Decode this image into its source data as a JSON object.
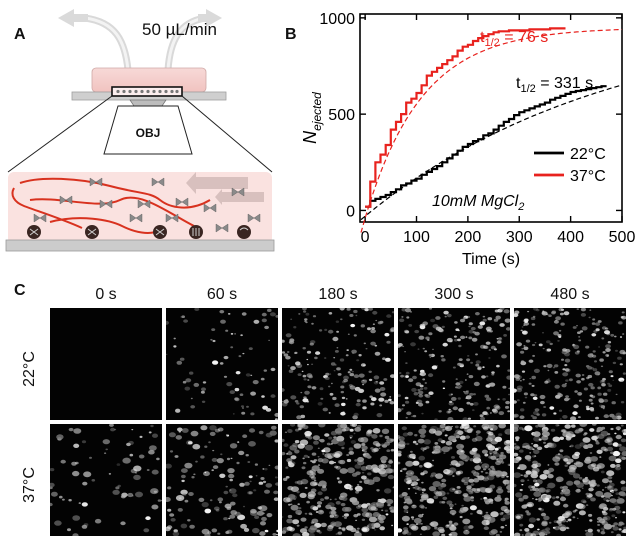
{
  "panels": {
    "a": "A",
    "b": "B",
    "c": "C"
  },
  "panel_a": {
    "flow_rate": "50 µL/min",
    "objective": "OBJ"
  },
  "chart_data": {
    "type": "line",
    "xlabel": "Time (s)",
    "ylabel": "N",
    "ylabel_subscript": "ejected",
    "xlim": [
      -10,
      500
    ],
    "ylim": [
      -60,
      1020
    ],
    "xticks": [
      0,
      100,
      200,
      300,
      400,
      500
    ],
    "yticks": [
      0,
      500,
      1000
    ],
    "grid": false,
    "legend_position": "right",
    "condition_label": "10mM MgCl",
    "condition_subscript": "2",
    "annotations": [
      {
        "series": "37°C",
        "text": "t",
        "subscript": "1/2",
        "suffix": " = 76 s"
      },
      {
        "series": "22°C",
        "text": "t",
        "subscript": "1/2",
        "suffix": " = 331 s"
      }
    ],
    "series": [
      {
        "name": "22°C",
        "color": "#000000",
        "style": "step",
        "x": [
          0,
          10,
          20,
          30,
          40,
          50,
          60,
          70,
          80,
          90,
          100,
          110,
          120,
          130,
          140,
          150,
          160,
          170,
          180,
          190,
          200,
          210,
          220,
          230,
          240,
          250,
          260,
          270,
          280,
          290,
          300,
          310,
          320,
          330,
          340,
          350,
          360,
          370,
          380,
          390,
          400,
          410,
          420,
          430,
          440,
          450,
          460,
          470
        ],
        "values": [
          20,
          50,
          60,
          70,
          80,
          95,
          110,
          130,
          140,
          155,
          165,
          185,
          200,
          215,
          230,
          250,
          270,
          290,
          310,
          330,
          345,
          360,
          370,
          390,
          400,
          420,
          440,
          460,
          475,
          495,
          510,
          520,
          530,
          540,
          550,
          560,
          575,
          585,
          595,
          605,
          615,
          620,
          625,
          630,
          635,
          640,
          645,
          645
        ]
      },
      {
        "name": "37°C",
        "color": "#e8221e",
        "style": "step",
        "x": [
          0,
          10,
          20,
          30,
          40,
          50,
          60,
          70,
          80,
          90,
          100,
          110,
          120,
          130,
          140,
          150,
          160,
          170,
          180,
          190,
          200,
          210,
          220,
          230,
          240,
          250,
          260,
          280,
          300,
          320,
          340,
          360,
          380,
          390
        ],
        "values": [
          20,
          150,
          250,
          290,
          340,
          420,
          460,
          500,
          560,
          580,
          610,
          650,
          700,
          720,
          740,
          760,
          780,
          800,
          830,
          850,
          860,
          880,
          895,
          905,
          915,
          925,
          930,
          935,
          935,
          940,
          940,
          945,
          945,
          945
        ]
      },
      {
        "name": "22°C fit",
        "color": "#000000",
        "style": "dashed",
        "amplitude": 1050,
        "half_life": 331,
        "offset": -30
      },
      {
        "name": "37°C fit",
        "color": "#e8221e",
        "style": "dashed",
        "amplitude": 990,
        "half_life": 76,
        "offset": -40
      }
    ]
  },
  "panel_c": {
    "times": [
      "0 s",
      "60 s",
      "180 s",
      "300 s",
      "480 s"
    ],
    "rows": [
      {
        "label": "22°C",
        "densities": [
          0,
          0.18,
          0.45,
          0.55,
          0.6
        ]
      },
      {
        "label": "37°C",
        "densities": [
          0.08,
          0.35,
          0.85,
          0.95,
          0.95
        ]
      }
    ]
  }
}
